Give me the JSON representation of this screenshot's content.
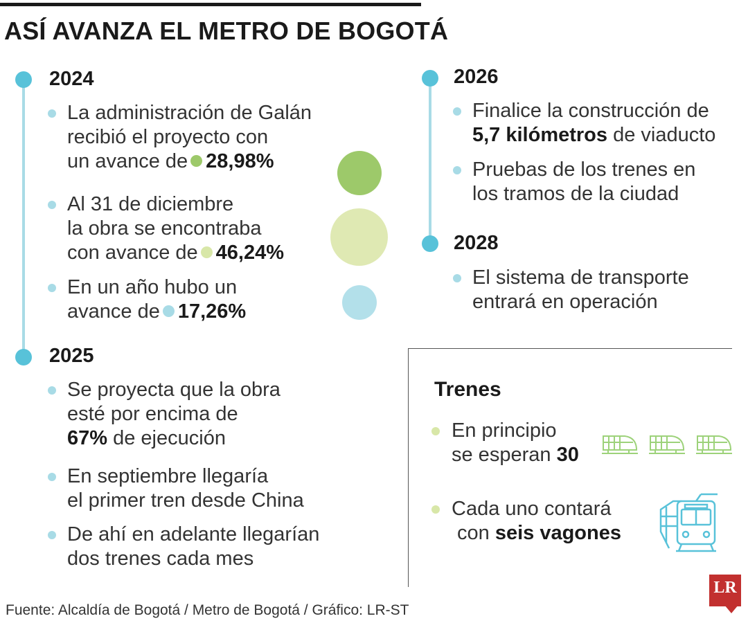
{
  "title": "ASÍ AVANZA EL METRO DE BOGOTÁ",
  "timeline_left": {
    "y2024": {
      "year": "2024",
      "items": [
        {
          "lines": [
            "La administración de Galán",
            "recibió el proyecto con",
            "un avance de"
          ],
          "value": "28,98%"
        },
        {
          "lines": [
            "Al 31 de diciembre",
            "la obra se encontraba",
            "con avance de"
          ],
          "value": "46,24%"
        },
        {
          "lines": [
            "En un año hubo un",
            "avance de"
          ],
          "value": "17,26%"
        }
      ]
    },
    "y2025": {
      "year": "2025",
      "items": [
        {
          "lines": [
            "Se proyecta que la obra",
            "esté por encima de"
          ],
          "bold": "67%",
          "after": "de ejecución"
        },
        {
          "lines": [
            "En septiembre llegaría",
            "el primer tren desde China"
          ]
        },
        {
          "lines": [
            "De ahí en adelante llegarían",
            "dos trenes cada mes"
          ]
        }
      ]
    }
  },
  "timeline_right": {
    "y2026": {
      "year": "2026",
      "items": [
        {
          "lines": [
            "Finalice la construcción de"
          ],
          "bold": "5,7 kilómetros",
          "after": "de viaducto"
        },
        {
          "lines": [
            "Pruebas de los trenes en",
            "los tramos de la ciudad"
          ]
        }
      ]
    },
    "y2028": {
      "year": "2028",
      "items": [
        {
          "lines": [
            "El sistema de transporte",
            "entrará en operación"
          ]
        }
      ]
    }
  },
  "trenes": {
    "title": "Trenes",
    "items": [
      {
        "lines": [
          "En principio",
          "se esperan"
        ],
        "bold": "30"
      },
      {
        "lines": [
          "Cada uno contará",
          "con"
        ],
        "bold": "seis vagones"
      }
    ]
  },
  "source": "Fuente: Alcaldía de Bogotá / Metro de Bogotá / Gráfico: LR-ST",
  "logo_text": "LR",
  "colors": {
    "timeline_dot": "#58c2d9",
    "timeline_line": "#a8dbe6",
    "avance_2024_start": "#9dc96a",
    "avance_2024_end": "#d8e7a8",
    "avance_year": "#a8dbe6",
    "train_icon": "#9dd27a",
    "metro_icon": "#58c2d9",
    "logo": "#c2302f"
  },
  "icons": [
    "train-icon",
    "train-icon",
    "train-icon",
    "metro-car-icon"
  ]
}
